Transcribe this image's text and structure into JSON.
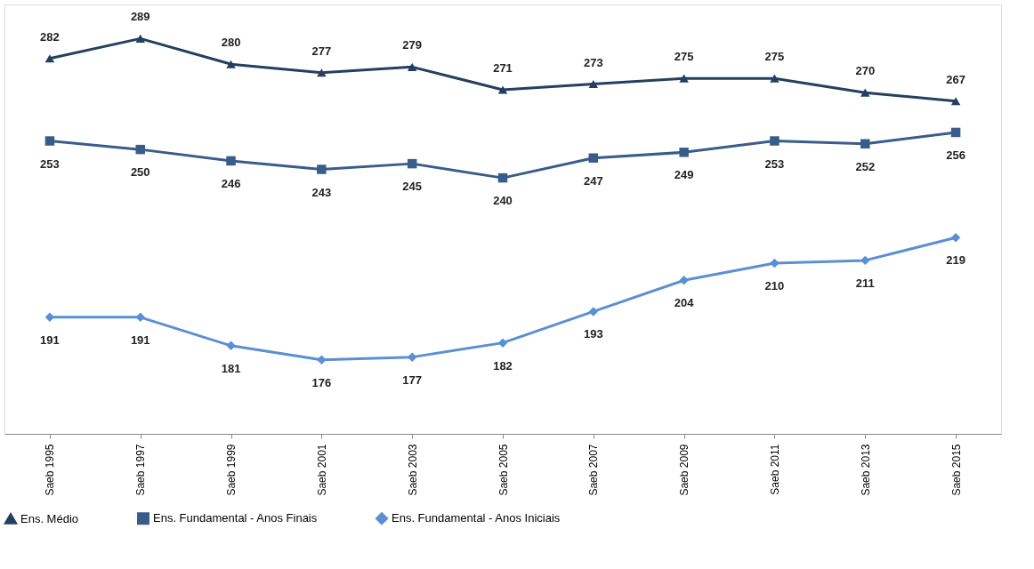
{
  "chart_data": {
    "type": "line",
    "categories": [
      "Saeb 1995",
      "Saeb 1997",
      "Saeb 1999",
      "Saeb 2001",
      "Saeb 2003",
      "Saeb 2005",
      "Saeb 2007",
      "Saeb 2009",
      "Saeb 2011",
      "Saeb 2013",
      "Saeb 2015"
    ],
    "series": [
      {
        "name": "Ens. Médio",
        "color": "#243f60",
        "marker": "triangle",
        "values": [
          282,
          289,
          280,
          277,
          279,
          271,
          273,
          275,
          275,
          270,
          267
        ]
      },
      {
        "name": "Ens. Fundamental - Anos Finais",
        "color": "#385d8a",
        "marker": "square",
        "values": [
          253,
          250,
          246,
          243,
          245,
          240,
          247,
          249,
          253,
          252,
          256
        ]
      },
      {
        "name": "Ens. Fundamental - Anos Iniciais",
        "color": "#5b8fd4",
        "marker": "diamond",
        "values": [
          191,
          191,
          181,
          176,
          177,
          182,
          193,
          204,
          210,
          211,
          219
        ]
      }
    ],
    "ylim": [
      150,
      301
    ],
    "tick_labels": "x",
    "data_labels": true,
    "grid": false,
    "legend": "bottom",
    "line_style": "solid"
  }
}
